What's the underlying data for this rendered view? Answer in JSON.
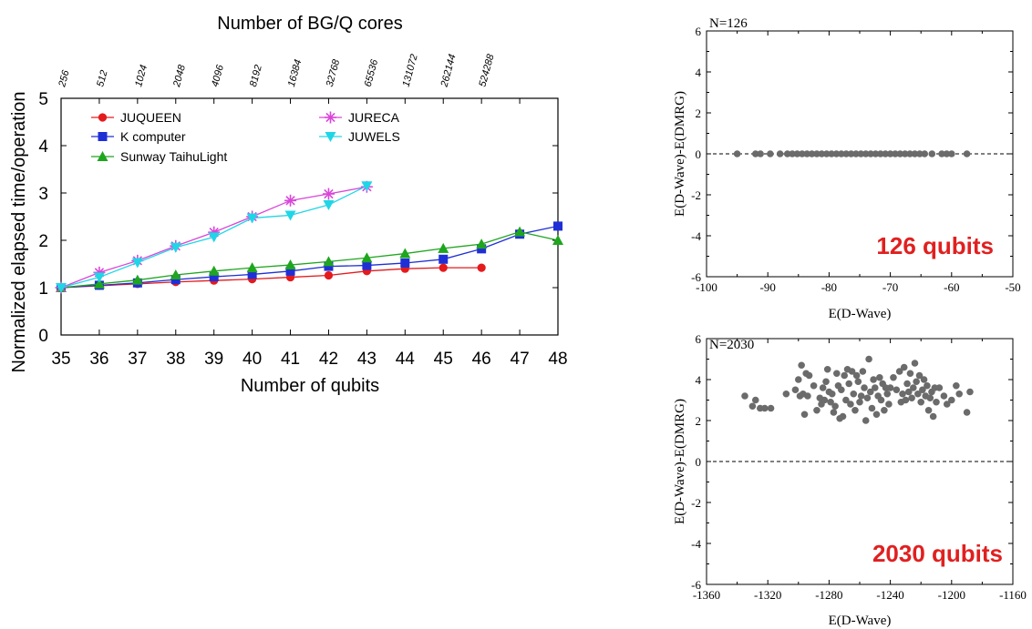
{
  "chart_data": [
    {
      "type": "line",
      "top_axis_label": "Number of BG/Q cores",
      "top_ticks": [
        "256",
        "512",
        "1024",
        "2048",
        "4096",
        "8192",
        "16384",
        "32768",
        "65536",
        "131072",
        "262144",
        "524288"
      ],
      "xlabel": "Number of qubits",
      "ylabel": "Normalized elapsed time/operation",
      "xlim": [
        35,
        48
      ],
      "ylim": [
        0,
        5
      ],
      "x_ticks": [
        "35",
        "36",
        "37",
        "38",
        "39",
        "40",
        "41",
        "42",
        "43",
        "44",
        "45",
        "46",
        "47",
        "48"
      ],
      "y_ticks": [
        "0",
        "1",
        "2",
        "3",
        "4",
        "5"
      ],
      "grid": false,
      "legend": "top",
      "series": [
        {
          "name": "JUQUEEN",
          "color": "#e41a1c",
          "marker": "circle",
          "x": [
            35,
            36,
            37,
            38,
            39,
            40,
            41,
            42,
            43,
            44,
            45,
            46
          ],
          "values": [
            1.0,
            1.04,
            1.08,
            1.12,
            1.15,
            1.18,
            1.22,
            1.26,
            1.35,
            1.4,
            1.42,
            1.42
          ]
        },
        {
          "name": "K computer",
          "color": "#1f2fd6",
          "marker": "square",
          "x": [
            35,
            36,
            37,
            38,
            39,
            40,
            41,
            42,
            43,
            44,
            45,
            46,
            47,
            48
          ],
          "values": [
            1.0,
            1.05,
            1.1,
            1.17,
            1.23,
            1.28,
            1.35,
            1.45,
            1.47,
            1.52,
            1.6,
            1.82,
            2.13,
            2.3
          ]
        },
        {
          "name": "Sunway TaihuLight",
          "color": "#1fa51f",
          "marker": "triangle",
          "x": [
            35,
            36,
            37,
            38,
            39,
            40,
            41,
            42,
            43,
            44,
            45,
            46,
            47,
            48
          ],
          "values": [
            1.0,
            1.08,
            1.16,
            1.27,
            1.35,
            1.42,
            1.48,
            1.55,
            1.63,
            1.72,
            1.83,
            1.92,
            2.18,
            2.0
          ]
        },
        {
          "name": "JURECA",
          "color": "#d946d9",
          "marker": "star",
          "x": [
            35,
            36,
            37,
            38,
            39,
            40,
            41,
            42,
            43
          ],
          "values": [
            1.0,
            1.32,
            1.57,
            1.88,
            2.17,
            2.5,
            2.84,
            2.98,
            3.13
          ]
        },
        {
          "name": "JUWELS",
          "color": "#1fd6e6",
          "marker": "triangle-down",
          "x": [
            35,
            36,
            37,
            38,
            39,
            40,
            41,
            42,
            43
          ],
          "values": [
            1.0,
            1.22,
            1.53,
            1.85,
            2.07,
            2.47,
            2.53,
            2.75,
            3.15
          ]
        }
      ]
    },
    {
      "type": "scatter",
      "annotation": "N=126",
      "big_label": "126 qubits",
      "xlabel": "E(D-Wave)",
      "ylabel": "E(D-Wave)-E(DMRG)",
      "xlim": [
        -100,
        -50
      ],
      "ylim": [
        -6,
        6
      ],
      "x_ticks": [
        "-100",
        "-90",
        "-80",
        "-70",
        "-60",
        "-50"
      ],
      "y_ticks": [
        "-6",
        "-4",
        "-2",
        "0",
        "2",
        "4",
        "6"
      ],
      "reference_line": 0,
      "x": [
        -95,
        -92,
        -91.2,
        -89.6,
        -88,
        -86.8,
        -86,
        -85.2,
        -84.4,
        -83.6,
        -82.8,
        -82,
        -81.2,
        -80.4,
        -79.6,
        -78.8,
        -78,
        -77.2,
        -76.4,
        -75.6,
        -74.8,
        -74,
        -73.2,
        -72.4,
        -71.6,
        -70.8,
        -70,
        -69.2,
        -68.4,
        -67.6,
        -66.8,
        -66,
        -65.2,
        -64.4,
        -63.2,
        -61.6,
        -60.8,
        -60,
        -57.5
      ],
      "y": [
        0,
        0,
        0,
        0,
        0,
        0,
        0,
        0,
        0,
        0,
        0,
        0,
        0,
        0,
        0,
        0,
        0,
        0,
        0,
        0,
        0,
        0,
        0,
        0,
        0,
        0,
        0,
        0,
        0,
        0,
        0,
        0,
        0,
        0,
        0,
        0,
        0,
        0,
        0
      ]
    },
    {
      "type": "scatter",
      "annotation": "N=2030",
      "big_label": "2030 qubits",
      "xlabel": "E(D-Wave)",
      "ylabel": "E(D-Wave)-E(DMRG)",
      "xlim": [
        -1360,
        -1160
      ],
      "ylim": [
        -6,
        6
      ],
      "x_ticks": [
        "-1360",
        "-1320",
        "-1280",
        "-1240",
        "-1200",
        "-1160"
      ],
      "y_ticks": [
        "-6",
        "-4",
        "-2",
        "0",
        "2",
        "4",
        "6"
      ],
      "reference_line": 0,
      "x": [
        -1335,
        -1330,
        -1328,
        -1325,
        -1322,
        -1318,
        -1308,
        -1302,
        -1300,
        -1299,
        -1298,
        -1297,
        -1296,
        -1295,
        -1294,
        -1293,
        -1290,
        -1288,
        -1286,
        -1285,
        -1284,
        -1283,
        -1282,
        -1281,
        -1280,
        -1279,
        -1278,
        -1277,
        -1276,
        -1275,
        -1274,
        -1273,
        -1272,
        -1271,
        -1270,
        -1269,
        -1268,
        -1267,
        -1266,
        -1265,
        -1264,
        -1263,
        -1262,
        -1261,
        -1260,
        -1259,
        -1258,
        -1257,
        -1256,
        -1255,
        -1254,
        -1253,
        -1252,
        -1251,
        -1250,
        -1249,
        -1248,
        -1247,
        -1246,
        -1245,
        -1244,
        -1243,
        -1242,
        -1241,
        -1240,
        -1238,
        -1236,
        -1234,
        -1233,
        -1232,
        -1231,
        -1230,
        -1229,
        -1228,
        -1227,
        -1226,
        -1225,
        -1224,
        -1223,
        -1222,
        -1221,
        -1220,
        -1219,
        -1218,
        -1217,
        -1216,
        -1215,
        -1214,
        -1213,
        -1212,
        -1211,
        -1210,
        -1208,
        -1205,
        -1203,
        -1200,
        -1197,
        -1195,
        -1190,
        -1188
      ],
      "y": [
        3.2,
        2.7,
        3.0,
        2.6,
        2.6,
        2.6,
        3.3,
        3.5,
        4.0,
        3.2,
        4.7,
        3.3,
        2.3,
        4.3,
        3.2,
        4.2,
        3.7,
        2.5,
        3.1,
        2.8,
        3.6,
        3.0,
        3.9,
        4.5,
        3.4,
        2.9,
        3.3,
        2.4,
        2.7,
        4.3,
        3.7,
        2.1,
        3.5,
        2.2,
        4.2,
        3.0,
        4.5,
        3.8,
        2.8,
        4.4,
        3.3,
        2.5,
        4.2,
        3.9,
        2.9,
        3.2,
        4.4,
        3.6,
        2.0,
        3.1,
        5.0,
        3.4,
        2.6,
        4.0,
        3.6,
        2.3,
        3.2,
        4.1,
        3.0,
        3.8,
        2.5,
        3.6,
        3.3,
        2.8,
        3.6,
        4.1,
        3.5,
        4.4,
        2.9,
        3.3,
        4.6,
        3.0,
        3.8,
        3.4,
        4.3,
        3.1,
        3.6,
        4.8,
        3.9,
        3.3,
        4.2,
        2.9,
        3.5,
        4.0,
        3.2,
        3.7,
        2.5,
        3.1,
        3.4,
        2.2,
        3.6,
        2.9,
        3.6,
        3.2,
        2.8,
        3.0,
        3.7,
        3.3,
        2.4,
        3.4
      ]
    }
  ]
}
